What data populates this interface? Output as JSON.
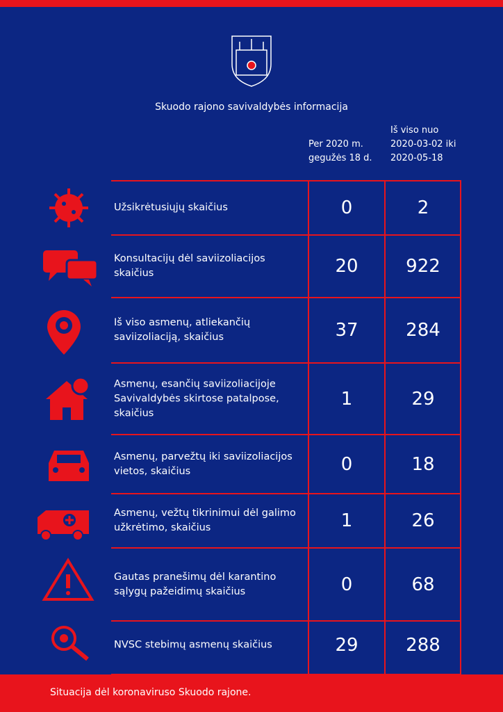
{
  "header": {
    "title": "Skuodo rajono savivaldybės informacija"
  },
  "table": {
    "columns": [
      {
        "lines": [
          "Per 2020 m.",
          "gegužės 18 d."
        ]
      },
      {
        "lines": [
          "Iš viso nuo",
          "2020-03-02 iki",
          "2020-05-18"
        ]
      }
    ],
    "rows": [
      {
        "label": "Užsikrėtusiųjų skaičius",
        "day": 0,
        "total": 2
      },
      {
        "label": "Konsultacijų dėl saviizoliacijos skaičius",
        "day": 20,
        "total": 922
      },
      {
        "label": "Iš viso asmenų, atliekančių saviizoliaciją, skaičius",
        "day": 37,
        "total": 284
      },
      {
        "label": "Asmenų, esančių saviizoliacijoje Savivaldybės skirtose patalpose, skaičius",
        "day": 1,
        "total": 29
      },
      {
        "label": "Asmenų, parvežtų iki saviizoliacijos vietos, skaičius",
        "day": 0,
        "total": 18
      },
      {
        "label": "Asmenų, vežtų tikrinimui dėl galimo užkrėtimo, skaičius",
        "day": 1,
        "total": 26
      },
      {
        "label": "Gautas pranešimų dėl karantino sąlygų pažeidimų skaičius",
        "day": 0,
        "total": 68
      },
      {
        "label": "NVSC stebimų asmenų skaičius",
        "day": 29,
        "total": 288
      }
    ]
  },
  "footer": {
    "text": "Situacija dėl koronaviruso Skuodo rajone."
  }
}
